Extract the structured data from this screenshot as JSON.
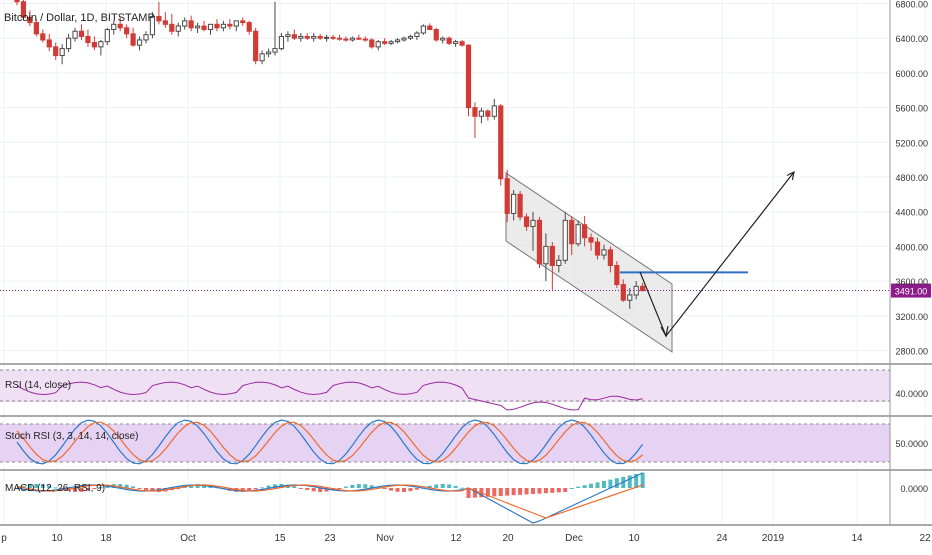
{
  "title": "Bitcoin / Dollar, 1D, BITSTAMP",
  "price_axis": {
    "ticks": [
      "6800.00",
      "6400.00",
      "6000.00",
      "5600.00",
      "5200.00",
      "4800.00",
      "4400.00",
      "4000.00",
      "3600.00",
      "3200.00",
      "2800.00"
    ],
    "current_price_label": "3491.00"
  },
  "x_axis": {
    "ticks": [
      "p",
      "10",
      "18",
      "Oct",
      "15",
      "23",
      "Nov",
      "12",
      "20",
      "Dec",
      "10",
      "24",
      "2019",
      "14",
      "22"
    ]
  },
  "indicators": {
    "rsi": {
      "label": "RSI (14, close)",
      "ticks": [
        "40.0000"
      ]
    },
    "stoch": {
      "label": "Stoch RSI (3, 3, 14, 14, close)",
      "ticks": [
        "50.0000"
      ]
    },
    "macd": {
      "label": "MACD (12, 26, RSI, 9)",
      "ticks": [
        "0.0000"
      ]
    }
  },
  "colors": {
    "up": "#4a4a4a",
    "down": "#d23b35",
    "rsi_line": "#9b2aa0",
    "stoch_k": "#2b78c6",
    "stoch_d": "#ef6a2c",
    "macd_pos": "#26a7b3",
    "macd_neg": "#e7423a",
    "level": "#2f6fc2",
    "current_price": "#8e1b8b",
    "channel_fill": "#e4e4e4",
    "arrow": "#222222"
  },
  "chart_data": {
    "type": "candlestick",
    "title": "Bitcoin / Dollar, 1D, BITSTAMP",
    "ylim": [
      2600,
      6900
    ],
    "current_price": 3491,
    "level_price": 3700,
    "candles": [
      [
        6890,
        6950,
        6780,
        6820
      ],
      [
        6820,
        6880,
        6600,
        6640
      ],
      [
        6640,
        6720,
        6540,
        6580
      ],
      [
        6580,
        6620,
        6420,
        6450
      ],
      [
        6450,
        6500,
        6350,
        6380
      ],
      [
        6380,
        6450,
        6250,
        6300
      ],
      [
        6300,
        6350,
        6150,
        6200
      ],
      [
        6200,
        6330,
        6100,
        6280
      ],
      [
        6280,
        6450,
        6240,
        6400
      ],
      [
        6400,
        6520,
        6360,
        6480
      ],
      [
        6480,
        6560,
        6380,
        6420
      ],
      [
        6420,
        6500,
        6300,
        6350
      ],
      [
        6350,
        6420,
        6260,
        6300
      ],
      [
        6300,
        6380,
        6200,
        6360
      ],
      [
        6360,
        6520,
        6320,
        6500
      ],
      [
        6500,
        6600,
        6440,
        6560
      ],
      [
        6560,
        6640,
        6480,
        6520
      ],
      [
        6520,
        6560,
        6400,
        6450
      ],
      [
        6450,
        6520,
        6300,
        6320
      ],
      [
        6320,
        6420,
        6260,
        6380
      ],
      [
        6380,
        6480,
        6340,
        6440
      ],
      [
        6440,
        6700,
        6400,
        6650
      ],
      [
        6650,
        6820,
        6560,
        6600
      ],
      [
        6600,
        6700,
        6520,
        6560
      ],
      [
        6560,
        6680,
        6440,
        6480
      ],
      [
        6480,
        6580,
        6420,
        6540
      ],
      [
        6540,
        6640,
        6500,
        6600
      ],
      [
        6600,
        6660,
        6480,
        6520
      ],
      [
        6520,
        6580,
        6460,
        6540
      ],
      [
        6540,
        6600,
        6480,
        6500
      ],
      [
        6500,
        6560,
        6440,
        6560
      ],
      [
        6560,
        6620,
        6480,
        6520
      ],
      [
        6520,
        6600,
        6480,
        6560
      ],
      [
        6560,
        6620,
        6500,
        6540
      ],
      [
        6540,
        6600,
        6480,
        6600
      ],
      [
        6600,
        6640,
        6540,
        6580
      ],
      [
        6580,
        6600,
        6440,
        6480
      ],
      [
        6480,
        6520,
        6100,
        6140
      ],
      [
        6140,
        6260,
        6100,
        6220
      ],
      [
        6220,
        6280,
        6180,
        6240
      ],
      [
        6240,
        6820,
        6200,
        6280
      ],
      [
        6280,
        6460,
        6260,
        6420
      ],
      [
        6420,
        6480,
        6360,
        6440
      ],
      [
        6440,
        6500,
        6380,
        6400
      ],
      [
        6400,
        6460,
        6360,
        6420
      ],
      [
        6420,
        6460,
        6380,
        6400
      ],
      [
        6400,
        6460,
        6360,
        6420
      ],
      [
        6420,
        6450,
        6380,
        6400
      ],
      [
        6400,
        6440,
        6360,
        6410
      ],
      [
        6410,
        6440,
        6380,
        6400
      ],
      [
        6400,
        6440,
        6370,
        6390
      ],
      [
        6390,
        6420,
        6360,
        6380
      ],
      [
        6380,
        6420,
        6360,
        6400
      ],
      [
        6400,
        6440,
        6380,
        6390
      ],
      [
        6390,
        6420,
        6360,
        6380
      ],
      [
        6380,
        6400,
        6280,
        6300
      ],
      [
        6300,
        6380,
        6260,
        6360
      ],
      [
        6360,
        6400,
        6320,
        6340
      ],
      [
        6340,
        6380,
        6320,
        6360
      ],
      [
        6360,
        6400,
        6340,
        6380
      ],
      [
        6380,
        6420,
        6360,
        6400
      ],
      [
        6400,
        6440,
        6380,
        6420
      ],
      [
        6420,
        6480,
        6380,
        6460
      ],
      [
        6460,
        6560,
        6440,
        6540
      ],
      [
        6540,
        6570,
        6500,
        6500
      ],
      [
        6500,
        6520,
        6360,
        6380
      ],
      [
        6380,
        6420,
        6340,
        6400
      ],
      [
        6400,
        6420,
        6320,
        6340
      ],
      [
        6340,
        6380,
        6300,
        6360
      ],
      [
        6360,
        6380,
        6300,
        6320
      ],
      [
        6320,
        6330,
        5500,
        5600
      ],
      [
        5600,
        5660,
        5250,
        5500
      ],
      [
        5500,
        5600,
        5420,
        5560
      ],
      [
        5560,
        5580,
        5450,
        5500
      ],
      [
        5500,
        5700,
        5460,
        5620
      ],
      [
        5620,
        5640,
        4700,
        4780
      ],
      [
        4780,
        4880,
        4280,
        4380
      ],
      [
        4380,
        4650,
        4300,
        4600
      ],
      [
        4600,
        4640,
        4300,
        4340
      ],
      [
        4340,
        4380,
        4180,
        4230
      ],
      [
        4230,
        4400,
        3950,
        4300
      ],
      [
        4300,
        4340,
        3750,
        3800
      ],
      [
        3800,
        4150,
        3600,
        4000
      ],
      [
        4000,
        4050,
        3500,
        3780
      ],
      [
        3780,
        3900,
        3700,
        3840
      ],
      [
        3840,
        4400,
        3800,
        4300
      ],
      [
        4300,
        4350,
        3900,
        4030
      ],
      [
        4030,
        4300,
        4000,
        4250
      ],
      [
        4250,
        4350,
        4000,
        4100
      ],
      [
        4100,
        4150,
        3950,
        4050
      ],
      [
        4050,
        4100,
        3850,
        3900
      ],
      [
        3900,
        4020,
        3850,
        3960
      ],
      [
        3960,
        4000,
        3700,
        3780
      ],
      [
        3780,
        3830,
        3520,
        3560
      ],
      [
        3560,
        3620,
        3360,
        3380
      ],
      [
        3380,
        3520,
        3280,
        3440
      ],
      [
        3440,
        3600,
        3390,
        3540
      ],
      [
        3540,
        3580,
        3480,
        3491
      ]
    ],
    "panels": {
      "rsi": {
        "range": [
          0,
          100
        ],
        "band": [
          30,
          70
        ]
      },
      "stoch": {
        "range": [
          0,
          100
        ],
        "band": [
          20,
          80
        ]
      }
    }
  }
}
